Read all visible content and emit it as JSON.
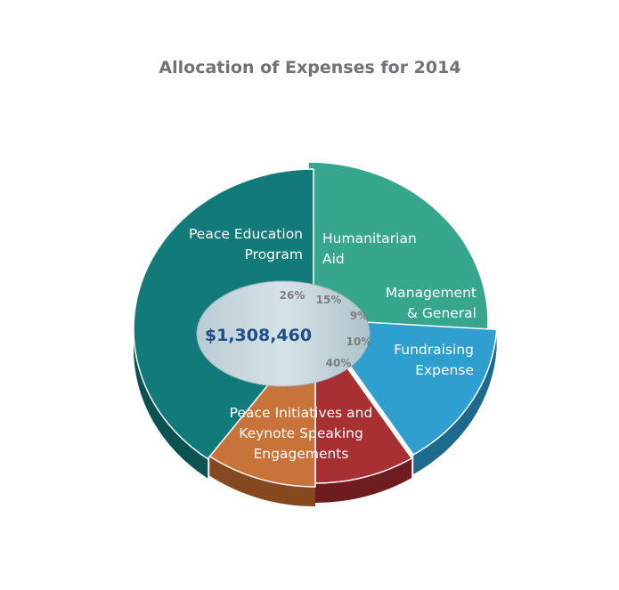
{
  "chart_data": {
    "type": "pie",
    "title": "Allocation of Expenses for 2014",
    "center_label": "$1,308,460",
    "slices": [
      {
        "label_lines": [
          "Peace Education",
          "Program"
        ],
        "value": 26,
        "pct_label": "26%",
        "color": "#36a78d",
        "side_color": "#23705e"
      },
      {
        "label_lines": [
          "Humanitarian",
          "Aid"
        ],
        "value": 15,
        "pct_label": "15%",
        "color": "#2f9fcf",
        "side_color": "#1d6a8d"
      },
      {
        "label_lines": [
          "Management",
          "& General"
        ],
        "value": 9,
        "pct_label": "9%",
        "color": "#a83032",
        "side_color": "#6e1c1f"
      },
      {
        "label_lines": [
          "Fundraising",
          "Expense"
        ],
        "value": 10,
        "pct_label": "10%",
        "color": "#c8733a",
        "side_color": "#86481f"
      },
      {
        "label_lines": [
          "Peace Initiatives and",
          "Keynote Speaking",
          "Engagements"
        ],
        "value": 40,
        "pct_label": "40%",
        "color": "#137a7a",
        "side_color": "#0b5252"
      }
    ]
  }
}
